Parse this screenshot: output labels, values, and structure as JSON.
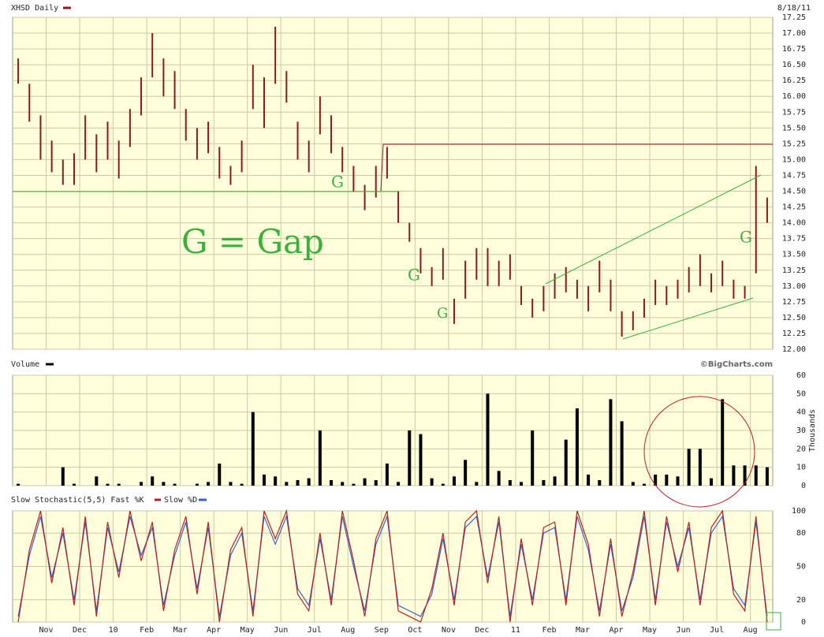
{
  "chart_data": [
    {
      "type": "hilo",
      "title": "XHSD Daily",
      "date": "8/18/11",
      "color": "#8b1a1a",
      "categories": [
        null,
        "Nov",
        "Dec",
        "10",
        "Feb",
        "Mar",
        "Apr",
        "May",
        "Jun",
        "Jul",
        "Aug",
        "Sep",
        "Oct",
        "Nov",
        "Dec",
        "11",
        "Feb",
        "Mar",
        "Apr",
        "May",
        "Jun",
        "Jul",
        "Aug"
      ],
      "high": [
        16.6,
        16.2,
        15.7,
        15.3,
        15.0,
        15.1,
        15.7,
        15.4,
        15.6,
        15.3,
        15.8,
        16.3,
        17.0,
        16.6,
        16.4,
        15.8,
        15.5,
        15.6,
        15.2,
        14.9,
        15.3,
        16.5,
        16.3,
        17.1,
        16.4,
        15.6,
        15.3,
        16.0,
        15.7,
        15.2,
        14.9,
        14.6,
        14.9,
        15.2,
        14.5,
        14.0,
        13.6,
        13.3,
        13.6,
        12.8,
        13.4,
        13.6,
        13.6,
        13.4,
        13.5,
        13.0,
        12.8,
        13.0,
        13.2,
        13.3,
        13.1,
        13.0,
        13.4,
        13.1,
        12.6,
        12.6,
        12.8,
        13.1,
        13.0,
        13.1,
        13.3,
        13.5,
        13.2,
        13.4,
        13.1,
        13.0,
        14.9,
        14.4
      ],
      "low": [
        16.2,
        15.6,
        15.0,
        14.8,
        14.6,
        14.6,
        15.0,
        14.8,
        15.0,
        14.7,
        15.2,
        15.7,
        16.3,
        16.0,
        15.8,
        15.3,
        15.0,
        15.1,
        14.7,
        14.6,
        14.8,
        15.8,
        15.5,
        16.2,
        15.9,
        15.0,
        14.8,
        15.4,
        15.1,
        14.8,
        14.5,
        14.2,
        14.4,
        14.7,
        14.0,
        13.7,
        13.2,
        13.0,
        13.1,
        12.4,
        12.8,
        13.1,
        13.0,
        13.0,
        13.1,
        12.7,
        12.5,
        12.6,
        12.8,
        12.9,
        12.8,
        12.6,
        12.9,
        12.6,
        12.2,
        12.3,
        12.5,
        12.7,
        12.7,
        12.8,
        12.9,
        13.0,
        12.9,
        13.0,
        12.8,
        12.8,
        13.2,
        14.0
      ],
      "ylim": [
        12,
        17.25
      ],
      "yticks": [
        {
          "value": 12,
          "label": "12.00"
        },
        {
          "value": 12.25,
          "label": "12.25"
        },
        {
          "value": 12.5,
          "label": "12.50"
        },
        {
          "value": 12.75,
          "label": "12.75"
        },
        {
          "value": 13,
          "label": "13.00"
        },
        {
          "value": 13.25,
          "label": "13.25"
        },
        {
          "value": 13.5,
          "label": "13.50"
        },
        {
          "value": 13.75,
          "label": "13.75"
        },
        {
          "value": 14,
          "label": "14.00"
        },
        {
          "value": 14.25,
          "label": "14.25"
        },
        {
          "value": 14.5,
          "label": "14.50"
        },
        {
          "value": 14.75,
          "label": "14.75"
        },
        {
          "value": 15,
          "label": "15.00"
        },
        {
          "value": 15.25,
          "label": "15.25"
        },
        {
          "value": 15.5,
          "label": "15.50"
        },
        {
          "value": 15.75,
          "label": "15.75"
        },
        {
          "value": 16,
          "label": "16.00"
        },
        {
          "value": 16.25,
          "label": "16.25"
        },
        {
          "value": 16.5,
          "label": "16.50"
        },
        {
          "value": 16.75,
          "label": "16.75"
        },
        {
          "value": 17,
          "label": "17.00"
        },
        {
          "value": 17.25,
          "label": "17.25"
        }
      ],
      "grid": true,
      "annotations": [
        "G",
        "G",
        "G",
        "G",
        "G = Gap"
      ]
    },
    {
      "type": "bar",
      "title": "Volume",
      "source": "©BigCharts.com",
      "ylabel": "Thousands",
      "color": "#000000",
      "values": [
        1,
        0,
        0,
        0,
        10,
        1,
        0,
        5,
        1,
        1,
        0,
        2,
        5,
        2,
        1,
        0,
        1,
        2,
        12,
        2,
        1,
        40,
        6,
        5,
        2,
        3,
        4,
        30,
        3,
        2,
        1,
        4,
        3,
        12,
        2,
        30,
        28,
        4,
        1,
        5,
        14,
        2,
        50,
        8,
        3,
        2,
        30,
        3,
        5,
        25,
        42,
        6,
        3,
        47,
        35,
        2,
        1,
        6,
        6,
        5,
        20,
        20,
        4,
        47,
        11,
        11,
        11,
        10
      ],
      "ylim": [
        0,
        60
      ],
      "yticks": [
        0,
        10,
        20,
        30,
        40,
        50,
        60
      ]
    },
    {
      "type": "line",
      "title": "Slow Stochastic(5,5) Fast %K",
      "series": [
        {
          "name": "Slow %D",
          "color": "#3a5fcd",
          "values": [
            5,
            60,
            95,
            40,
            80,
            20,
            90,
            10,
            85,
            45,
            95,
            60,
            85,
            15,
            60,
            90,
            30,
            85,
            5,
            60,
            80,
            10,
            95,
            70,
            95,
            30,
            15,
            75,
            20,
            95,
            50,
            10,
            70,
            95,
            15,
            10,
            5,
            25,
            75,
            20,
            85,
            95,
            40,
            90,
            5,
            70,
            20,
            80,
            85,
            20,
            95,
            65,
            10,
            70,
            10,
            40,
            95,
            20,
            90,
            50,
            85,
            20,
            80,
            95,
            30,
            15,
            90,
            5
          ]
        },
        {
          "name": "Fast %K",
          "color": "#b22222",
          "values": [
            0,
            65,
            100,
            35,
            85,
            15,
            95,
            5,
            90,
            40,
            100,
            55,
            90,
            10,
            65,
            95,
            25,
            90,
            0,
            65,
            85,
            5,
            100,
            75,
            100,
            25,
            10,
            80,
            15,
            100,
            55,
            5,
            75,
            100,
            10,
            5,
            0,
            30,
            80,
            15,
            90,
            100,
            35,
            95,
            0,
            75,
            15,
            85,
            90,
            15,
            100,
            70,
            5,
            75,
            5,
            45,
            100,
            15,
            95,
            45,
            90,
            15,
            85,
            100,
            25,
            10,
            95,
            0
          ]
        }
      ],
      "ylim": [
        0,
        100
      ],
      "yticks": [
        0,
        20,
        50,
        80,
        100
      ]
    }
  ]
}
